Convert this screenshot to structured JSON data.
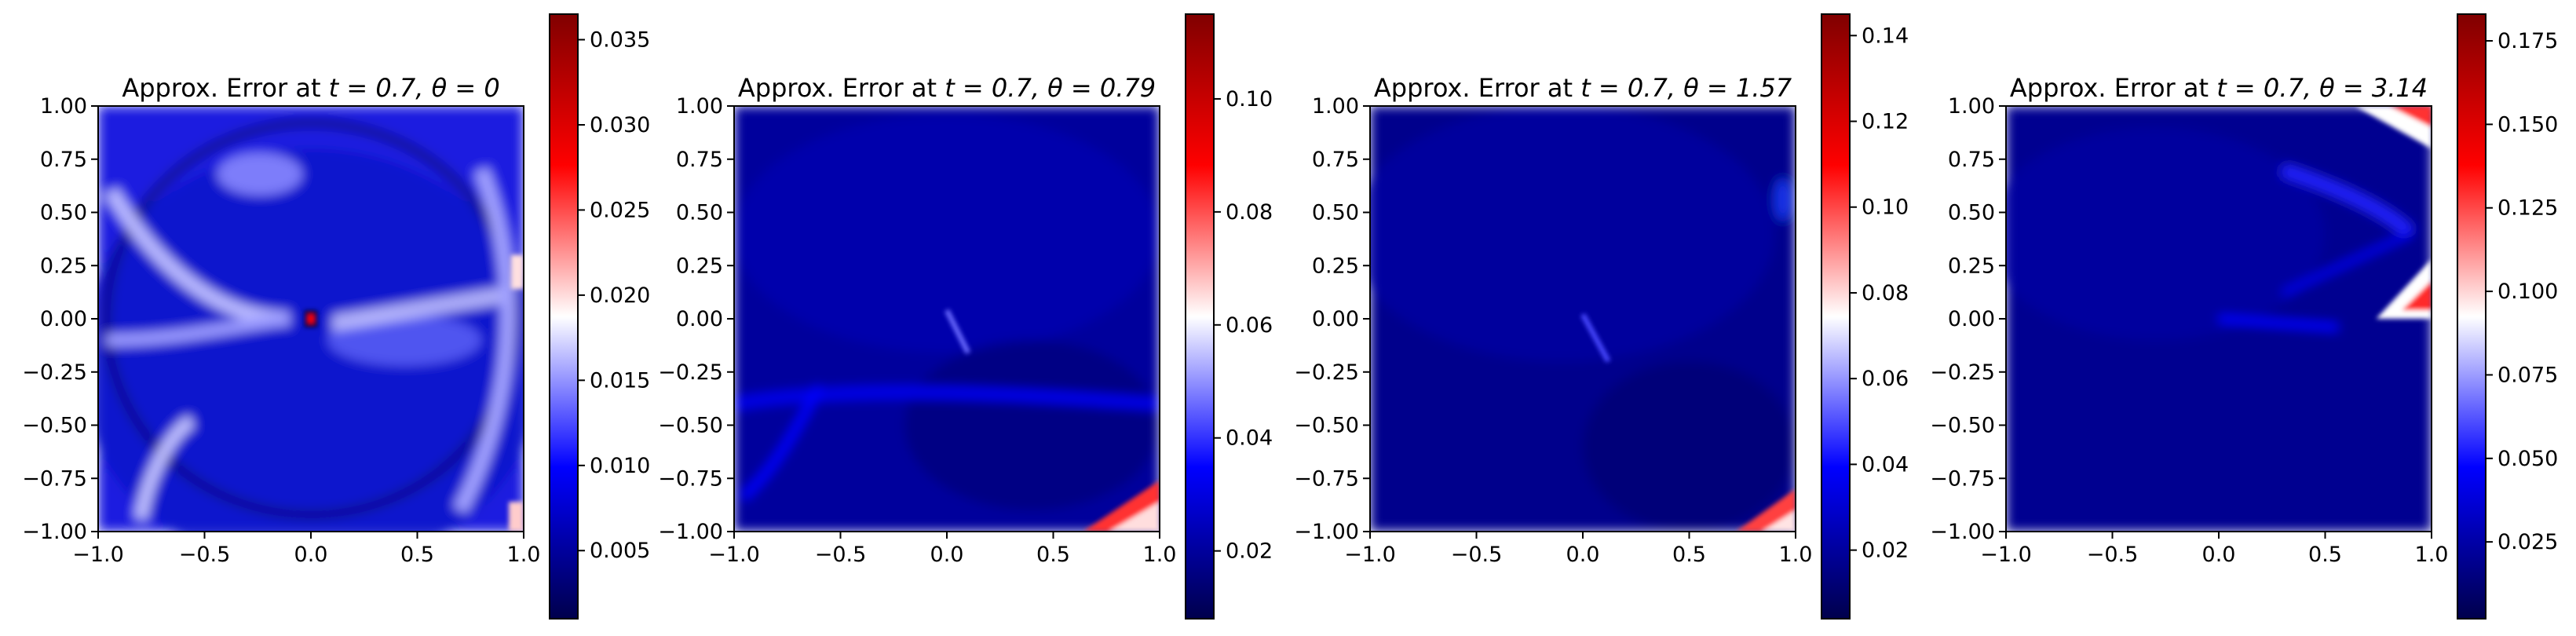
{
  "chart_data": [
    {
      "type": "heatmap",
      "title_text": "Approx. Error at ",
      "title_math": "t = 0.7, θ = 0",
      "xlim": [
        -1.0,
        1.0
      ],
      "ylim": [
        -1.0,
        1.0
      ],
      "x_ticks": [
        "−1.0",
        "−0.5",
        "0.0",
        "0.5",
        "1.0"
      ],
      "y_ticks": [
        "1.00",
        "0.75",
        "0.50",
        "0.25",
        "0.00",
        "−0.25",
        "−0.50",
        "−0.75",
        "−1.00"
      ],
      "colormap": "seismic",
      "colorbar_range": [
        0.001,
        0.0365
      ],
      "colorbar_ticks": [
        0.005,
        0.01,
        0.015,
        0.02,
        0.025,
        0.03,
        0.035
      ],
      "colorbar_labels": [
        "0.005",
        "0.010",
        "0.015",
        "0.020",
        "0.025",
        "0.030",
        "0.035"
      ],
      "pattern": "theta0"
    },
    {
      "type": "heatmap",
      "title_text": "Approx. Error at ",
      "title_math": "t = 0.7, θ = 0.79",
      "xlim": [
        -1.0,
        1.0
      ],
      "ylim": [
        -1.0,
        1.0
      ],
      "x_ticks": [
        "−1.0",
        "−0.5",
        "0.0",
        "0.5",
        "1.0"
      ],
      "y_ticks": [
        "1.00",
        "0.75",
        "0.50",
        "0.25",
        "0.00",
        "−0.25",
        "−0.50",
        "−0.75",
        "−1.00"
      ],
      "colormap": "seismic",
      "colorbar_range": [
        0.008,
        0.115
      ],
      "colorbar_ticks": [
        0.02,
        0.04,
        0.06,
        0.08,
        0.1
      ],
      "colorbar_labels": [
        "0.02",
        "0.04",
        "0.06",
        "0.08",
        "0.10"
      ],
      "pattern": "theta079"
    },
    {
      "type": "heatmap",
      "title_text": "Approx. Error at ",
      "title_math": "t = 0.7, θ = 1.57",
      "xlim": [
        -1.0,
        1.0
      ],
      "ylim": [
        -1.0,
        1.0
      ],
      "x_ticks": [
        "−1.0",
        "−0.5",
        "0.0",
        "0.5",
        "1.0"
      ],
      "y_ticks": [
        "1.00",
        "0.75",
        "0.50",
        "0.25",
        "0.00",
        "−0.25",
        "−0.50",
        "−0.75",
        "−1.00"
      ],
      "colormap": "seismic",
      "colorbar_range": [
        0.004,
        0.145
      ],
      "colorbar_ticks": [
        0.02,
        0.04,
        0.06,
        0.08,
        0.1,
        0.12,
        0.14
      ],
      "colorbar_labels": [
        "0.02",
        "0.04",
        "0.06",
        "0.08",
        "0.10",
        "0.12",
        "0.14"
      ],
      "pattern": "theta157"
    },
    {
      "type": "heatmap",
      "title_text": "Approx. Error at ",
      "title_math": "t = 0.7, θ = 3.14",
      "xlim": [
        -1.0,
        1.0
      ],
      "ylim": [
        -1.0,
        1.0
      ],
      "x_ticks": [
        "−1.0",
        "−0.5",
        "0.0",
        "0.5",
        "1.0"
      ],
      "y_ticks": [
        "1.00",
        "0.75",
        "0.50",
        "0.25",
        "0.00",
        "−0.25",
        "−0.50",
        "−0.75",
        "−1.00"
      ],
      "colormap": "seismic",
      "colorbar_range": [
        0.002,
        0.183
      ],
      "colorbar_ticks": [
        0.025,
        0.05,
        0.075,
        0.1,
        0.125,
        0.15,
        0.175
      ],
      "colorbar_labels": [
        "0.025",
        "0.050",
        "0.075",
        "0.100",
        "0.125",
        "0.150",
        "0.175"
      ],
      "pattern": "theta314"
    }
  ]
}
